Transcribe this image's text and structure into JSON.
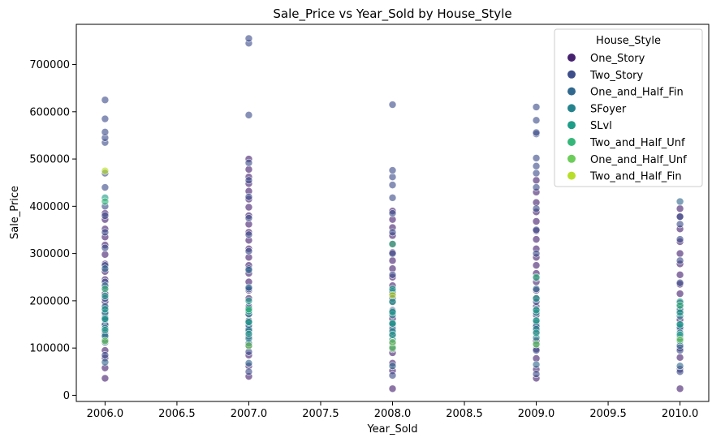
{
  "chart_data": {
    "type": "scatter",
    "title": "Sale_Price vs Year_Sold by House_Style",
    "xlabel": "Year_Sold",
    "ylabel": "Sale_Price",
    "xlim": [
      1995.8,
      2010.2
    ],
    "ylim": [
      0,
      785000
    ],
    "x_ticks": [
      2006.0,
      2006.5,
      2007.0,
      2007.5,
      2008.0,
      2008.5,
      2009.0,
      2009.5,
      2010.0
    ],
    "y_ticks": [
      0,
      100000,
      200000,
      300000,
      400000,
      500000,
      600000,
      700000
    ],
    "x_tick_labels": [
      "2006.0",
      "2006.5",
      "2007.0",
      "2007.5",
      "2008.0",
      "2008.5",
      "2009.0",
      "2009.5",
      "2010.0"
    ],
    "y_tick_labels": [
      "0",
      "100000",
      "200000",
      "300000",
      "400000",
      "500000",
      "600000",
      "700000"
    ],
    "grid": false,
    "legend": {
      "title": "House_Style",
      "placement": "top-right"
    },
    "series": [
      {
        "name": "One_Story",
        "color": "#46216f",
        "points": [
          [
            2006,
            36000
          ],
          [
            2006,
            58000
          ],
          [
            2006,
            79000
          ],
          [
            2006,
            95000
          ],
          [
            2006,
            118000
          ],
          [
            2006,
            132000
          ],
          [
            2006,
            148000
          ],
          [
            2006,
            160000
          ],
          [
            2006,
            172000
          ],
          [
            2006,
            185000
          ],
          [
            2006,
            198000
          ],
          [
            2006,
            215000
          ],
          [
            2006,
            228000
          ],
          [
            2006,
            245000
          ],
          [
            2006,
            262000
          ],
          [
            2006,
            278000
          ],
          [
            2006,
            298000
          ],
          [
            2006,
            318000
          ],
          [
            2006,
            335000
          ],
          [
            2006,
            352000
          ],
          [
            2006,
            372000
          ],
          [
            2006,
            385000
          ],
          [
            2007,
            40000
          ],
          [
            2007,
            62000
          ],
          [
            2007,
            85000
          ],
          [
            2007,
            105000
          ],
          [
            2007,
            125000
          ],
          [
            2007,
            142000
          ],
          [
            2007,
            158000
          ],
          [
            2007,
            172000
          ],
          [
            2007,
            188000
          ],
          [
            2007,
            205000
          ],
          [
            2007,
            222000
          ],
          [
            2007,
            240000
          ],
          [
            2007,
            258000
          ],
          [
            2007,
            275000
          ],
          [
            2007,
            292000
          ],
          [
            2007,
            310000
          ],
          [
            2007,
            328000
          ],
          [
            2007,
            345000
          ],
          [
            2007,
            362000
          ],
          [
            2007,
            380000
          ],
          [
            2007,
            398000
          ],
          [
            2007,
            415000
          ],
          [
            2007,
            432000
          ],
          [
            2007,
            448000
          ],
          [
            2007,
            462000
          ],
          [
            2007,
            478000
          ],
          [
            2007,
            500000
          ],
          [
            2008,
            14000
          ],
          [
            2008,
            52000
          ],
          [
            2008,
            68000
          ],
          [
            2008,
            90000
          ],
          [
            2008,
            110000
          ],
          [
            2008,
            128000
          ],
          [
            2008,
            145000
          ],
          [
            2008,
            162000
          ],
          [
            2008,
            180000
          ],
          [
            2008,
            198000
          ],
          [
            2008,
            215000
          ],
          [
            2008,
            232000
          ],
          [
            2008,
            250000
          ],
          [
            2008,
            268000
          ],
          [
            2008,
            285000
          ],
          [
            2008,
            302000
          ],
          [
            2008,
            320000
          ],
          [
            2008,
            338000
          ],
          [
            2008,
            355000
          ],
          [
            2008,
            372000
          ],
          [
            2008,
            390000
          ],
          [
            2009,
            36000
          ],
          [
            2009,
            55000
          ],
          [
            2009,
            78000
          ],
          [
            2009,
            98000
          ],
          [
            2009,
            115000
          ],
          [
            2009,
            135000
          ],
          [
            2009,
            152000
          ],
          [
            2009,
            170000
          ],
          [
            2009,
            188000
          ],
          [
            2009,
            205000
          ],
          [
            2009,
            222000
          ],
          [
            2009,
            240000
          ],
          [
            2009,
            258000
          ],
          [
            2009,
            275000
          ],
          [
            2009,
            292000
          ],
          [
            2009,
            310000
          ],
          [
            2009,
            330000
          ],
          [
            2009,
            348000
          ],
          [
            2009,
            368000
          ],
          [
            2009,
            388000
          ],
          [
            2009,
            408000
          ],
          [
            2009,
            430000
          ],
          [
            2009,
            455000
          ],
          [
            2010,
            14000
          ],
          [
            2010,
            55000
          ],
          [
            2010,
            80000
          ],
          [
            2010,
            100000
          ],
          [
            2010,
            122000
          ],
          [
            2010,
            140000
          ],
          [
            2010,
            160000
          ],
          [
            2010,
            178000
          ],
          [
            2010,
            195000
          ],
          [
            2010,
            215000
          ],
          [
            2010,
            235000
          ],
          [
            2010,
            255000
          ],
          [
            2010,
            278000
          ],
          [
            2010,
            300000
          ],
          [
            2010,
            325000
          ],
          [
            2010,
            352000
          ],
          [
            2010,
            378000
          ],
          [
            2010,
            395000
          ]
        ]
      },
      {
        "name": "Two_Story",
        "color": "#3d4e8a",
        "points": [
          [
            2006,
            85000
          ],
          [
            2006,
            128000
          ],
          [
            2006,
            165000
          ],
          [
            2006,
            205000
          ],
          [
            2006,
            240000
          ],
          [
            2006,
            275000
          ],
          [
            2006,
            312000
          ],
          [
            2006,
            345000
          ],
          [
            2006,
            380000
          ],
          [
            2006,
            400000
          ],
          [
            2006,
            440000
          ],
          [
            2006,
            470000
          ],
          [
            2006,
            535000
          ],
          [
            2006,
            545000
          ],
          [
            2006,
            557000
          ],
          [
            2006,
            585000
          ],
          [
            2006,
            625000
          ],
          [
            2007,
            50000
          ],
          [
            2007,
            92000
          ],
          [
            2007,
            135000
          ],
          [
            2007,
            180000
          ],
          [
            2007,
            225000
          ],
          [
            2007,
            268000
          ],
          [
            2007,
            305000
          ],
          [
            2007,
            340000
          ],
          [
            2007,
            375000
          ],
          [
            2007,
            420000
          ],
          [
            2007,
            455000
          ],
          [
            2007,
            492000
          ],
          [
            2007,
            593000
          ],
          [
            2007,
            745000
          ],
          [
            2007,
            755000
          ],
          [
            2008,
            42000
          ],
          [
            2008,
            98000
          ],
          [
            2008,
            150000
          ],
          [
            2008,
            205000
          ],
          [
            2008,
            255000
          ],
          [
            2008,
            300000
          ],
          [
            2008,
            345000
          ],
          [
            2008,
            385000
          ],
          [
            2008,
            418000
          ],
          [
            2008,
            445000
          ],
          [
            2008,
            462000
          ],
          [
            2008,
            476000
          ],
          [
            2008,
            615000
          ],
          [
            2009,
            45000
          ],
          [
            2009,
            95000
          ],
          [
            2009,
            148000
          ],
          [
            2009,
            198000
          ],
          [
            2009,
            248000
          ],
          [
            2009,
            300000
          ],
          [
            2009,
            350000
          ],
          [
            2009,
            395000
          ],
          [
            2009,
            440000
          ],
          [
            2009,
            470000
          ],
          [
            2009,
            485000
          ],
          [
            2009,
            502000
          ],
          [
            2009,
            553000
          ],
          [
            2009,
            556000
          ],
          [
            2009,
            582000
          ],
          [
            2009,
            610000
          ],
          [
            2010,
            50000
          ],
          [
            2010,
            95000
          ],
          [
            2010,
            142000
          ],
          [
            2010,
            190000
          ],
          [
            2010,
            238000
          ],
          [
            2010,
            285000
          ],
          [
            2010,
            330000
          ],
          [
            2010,
            362000
          ],
          [
            2010,
            378000
          ]
        ]
      },
      {
        "name": "One_and_Half_Fin",
        "color": "#30688e",
        "points": [
          [
            2006,
            70000
          ],
          [
            2006,
            112000
          ],
          [
            2006,
            150000
          ],
          [
            2006,
            188000
          ],
          [
            2006,
            232000
          ],
          [
            2006,
            268000
          ],
          [
            2007,
            68000
          ],
          [
            2007,
            110000
          ],
          [
            2007,
            148000
          ],
          [
            2007,
            185000
          ],
          [
            2007,
            228000
          ],
          [
            2007,
            265000
          ],
          [
            2008,
            62000
          ],
          [
            2008,
            102000
          ],
          [
            2008,
            140000
          ],
          [
            2008,
            178000
          ],
          [
            2008,
            220000
          ],
          [
            2009,
            65000
          ],
          [
            2009,
            108000
          ],
          [
            2009,
            145000
          ],
          [
            2009,
            182000
          ],
          [
            2009,
            225000
          ],
          [
            2010,
            62000
          ],
          [
            2010,
            105000
          ],
          [
            2010,
            145000
          ],
          [
            2010,
            182000
          ],
          [
            2010,
            410000
          ]
        ]
      },
      {
        "name": "SFoyer",
        "color": "#25838e",
        "points": [
          [
            2006,
            125000
          ],
          [
            2006,
            142000
          ],
          [
            2006,
            160000
          ],
          [
            2006,
            175000
          ],
          [
            2007,
            120000
          ],
          [
            2007,
            138000
          ],
          [
            2007,
            155000
          ],
          [
            2007,
            172000
          ],
          [
            2008,
            118000
          ],
          [
            2008,
            135000
          ],
          [
            2008,
            152000
          ],
          [
            2008,
            170000
          ],
          [
            2009,
            122000
          ],
          [
            2009,
            140000
          ],
          [
            2009,
            158000
          ],
          [
            2009,
            175000
          ],
          [
            2010,
            115000
          ],
          [
            2010,
            132000
          ],
          [
            2010,
            150000
          ],
          [
            2010,
            168000
          ]
        ]
      },
      {
        "name": "SLvl",
        "color": "#1e9d89",
        "points": [
          [
            2006,
            138000
          ],
          [
            2006,
            162000
          ],
          [
            2006,
            182000
          ],
          [
            2006,
            210000
          ],
          [
            2006,
            418000
          ],
          [
            2007,
            130000
          ],
          [
            2007,
            155000
          ],
          [
            2007,
            178000
          ],
          [
            2007,
            200000
          ],
          [
            2008,
            128000
          ],
          [
            2008,
            152000
          ],
          [
            2008,
            176000
          ],
          [
            2008,
            198000
          ],
          [
            2008,
            225000
          ],
          [
            2009,
            132000
          ],
          [
            2009,
            158000
          ],
          [
            2009,
            180000
          ],
          [
            2009,
            205000
          ],
          [
            2010,
            128000
          ],
          [
            2010,
            150000
          ],
          [
            2010,
            175000
          ],
          [
            2010,
            198000
          ]
        ]
      },
      {
        "name": "Two_and_Half_Unf",
        "color": "#35b779",
        "points": [
          [
            2006,
            225000
          ],
          [
            2006,
            410000
          ],
          [
            2007,
            182000
          ],
          [
            2008,
            320000
          ],
          [
            2009,
            250000
          ],
          [
            2010,
            190000
          ]
        ]
      },
      {
        "name": "One_and_Half_Unf",
        "color": "#6ccd5a",
        "points": [
          [
            2006,
            115000
          ],
          [
            2007,
            105000
          ],
          [
            2008,
            100000
          ],
          [
            2008,
            112000
          ],
          [
            2009,
            108000
          ],
          [
            2010,
            118000
          ]
        ]
      },
      {
        "name": "Two_and_Half_Fin",
        "color": "#b8de29",
        "points": [
          [
            2006,
            475000
          ],
          [
            2008,
            212000
          ]
        ]
      }
    ]
  }
}
